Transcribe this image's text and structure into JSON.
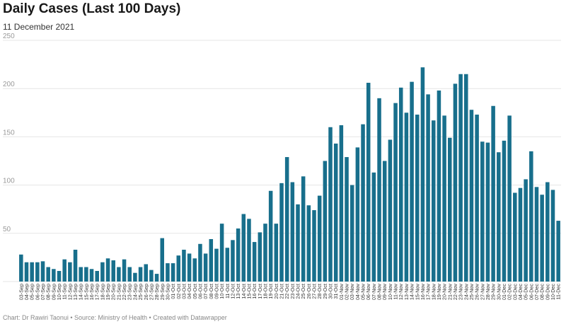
{
  "chart_data": {
    "type": "bar",
    "title": "Daily Cases (Last 100 Days)",
    "subtitle": "11 December 2021",
    "footer": "Chart: Dr Rawiri Taonui • Source: Ministry of Health • Created with Datawrapper",
    "bar_color": "#186f8c",
    "grid": true,
    "ylim": [
      0,
      250
    ],
    "yticks": [
      0,
      50,
      100,
      150,
      200,
      250
    ],
    "categories": [
      "03-Sep",
      "04-Sep",
      "05-Sep",
      "06-Sep",
      "07-Sep",
      "08-Sep",
      "09-Sep",
      "10-Sep",
      "11-Sep",
      "12-Sep",
      "13-Sep",
      "14-Sep",
      "15-Sep",
      "16-Sep",
      "17-Sep",
      "18-Sep",
      "19-Sep",
      "20-Sep",
      "21-Sep",
      "22-Sep",
      "23-Sep",
      "24-Sep",
      "25-Sep",
      "26-Sep",
      "27-Sep",
      "28-Sep",
      "29-Sep",
      "30-Sep",
      "01-Oct",
      "02-Oct",
      "03-Oct",
      "04-Oct",
      "05-Oct",
      "06-Oct",
      "07-Oct",
      "08-Oct",
      "09-Oct",
      "10-Oct",
      "11-Oct",
      "12-Oct",
      "13-Oct",
      "14-Oct",
      "15-Oct",
      "16-Oct",
      "17-Oct",
      "18-Oct",
      "19-Oct",
      "20-Oct",
      "21-Oct",
      "22-Oct",
      "23-Oct",
      "24-Oct",
      "25-Oct",
      "26-Oct",
      "27-Oct",
      "28-Oct",
      "29-Oct",
      "30-Oct",
      "31-Oct",
      "01-Nov",
      "02-Nov",
      "03-Nov",
      "04-Nov",
      "05-Nov",
      "06-Nov",
      "07-Nov",
      "08-Nov",
      "09-Nov",
      "10-Nov",
      "11-Nov",
      "12-Nov",
      "13-Nov",
      "14-Nov",
      "15-Nov",
      "16-Nov",
      "17-Nov",
      "18-Nov",
      "19-Nov",
      "20-Nov",
      "21-Nov",
      "22-Nov",
      "23-Nov",
      "24-Nov",
      "25-Nov",
      "26-Nov",
      "27-Nov",
      "28-Nov",
      "29-Nov",
      "30-Nov",
      "01-Dec",
      "02-Dec",
      "03-Dec",
      "04-Dec",
      "05-Dec",
      "06-Dec",
      "07-Dec",
      "08-Dec",
      "09-Dec",
      "10-Dec",
      "11-Dec"
    ],
    "values": [
      28,
      20,
      20,
      20,
      21,
      15,
      13,
      11,
      23,
      20,
      33,
      15,
      15,
      13,
      11,
      20,
      24,
      22,
      15,
      23,
      15,
      9,
      15,
      18,
      12,
      8,
      45,
      19,
      19,
      27,
      33,
      29,
      24,
      39,
      29,
      44,
      34,
      60,
      35,
      43,
      55,
      70,
      65,
      41,
      51,
      60,
      94,
      60,
      102,
      129,
      103,
      80,
      109,
      79,
      74,
      89,
      125,
      160,
      143,
      162,
      129,
      100,
      139,
      163,
      206,
      113,
      190,
      125,
      147,
      185,
      201,
      175,
      207,
      173,
      222,
      194,
      167,
      198,
      172,
      149,
      205,
      215,
      215,
      178,
      173,
      145,
      144,
      182,
      134,
      146,
      172,
      92,
      97,
      106,
      135,
      98,
      90,
      103,
      95,
      63
    ]
  }
}
